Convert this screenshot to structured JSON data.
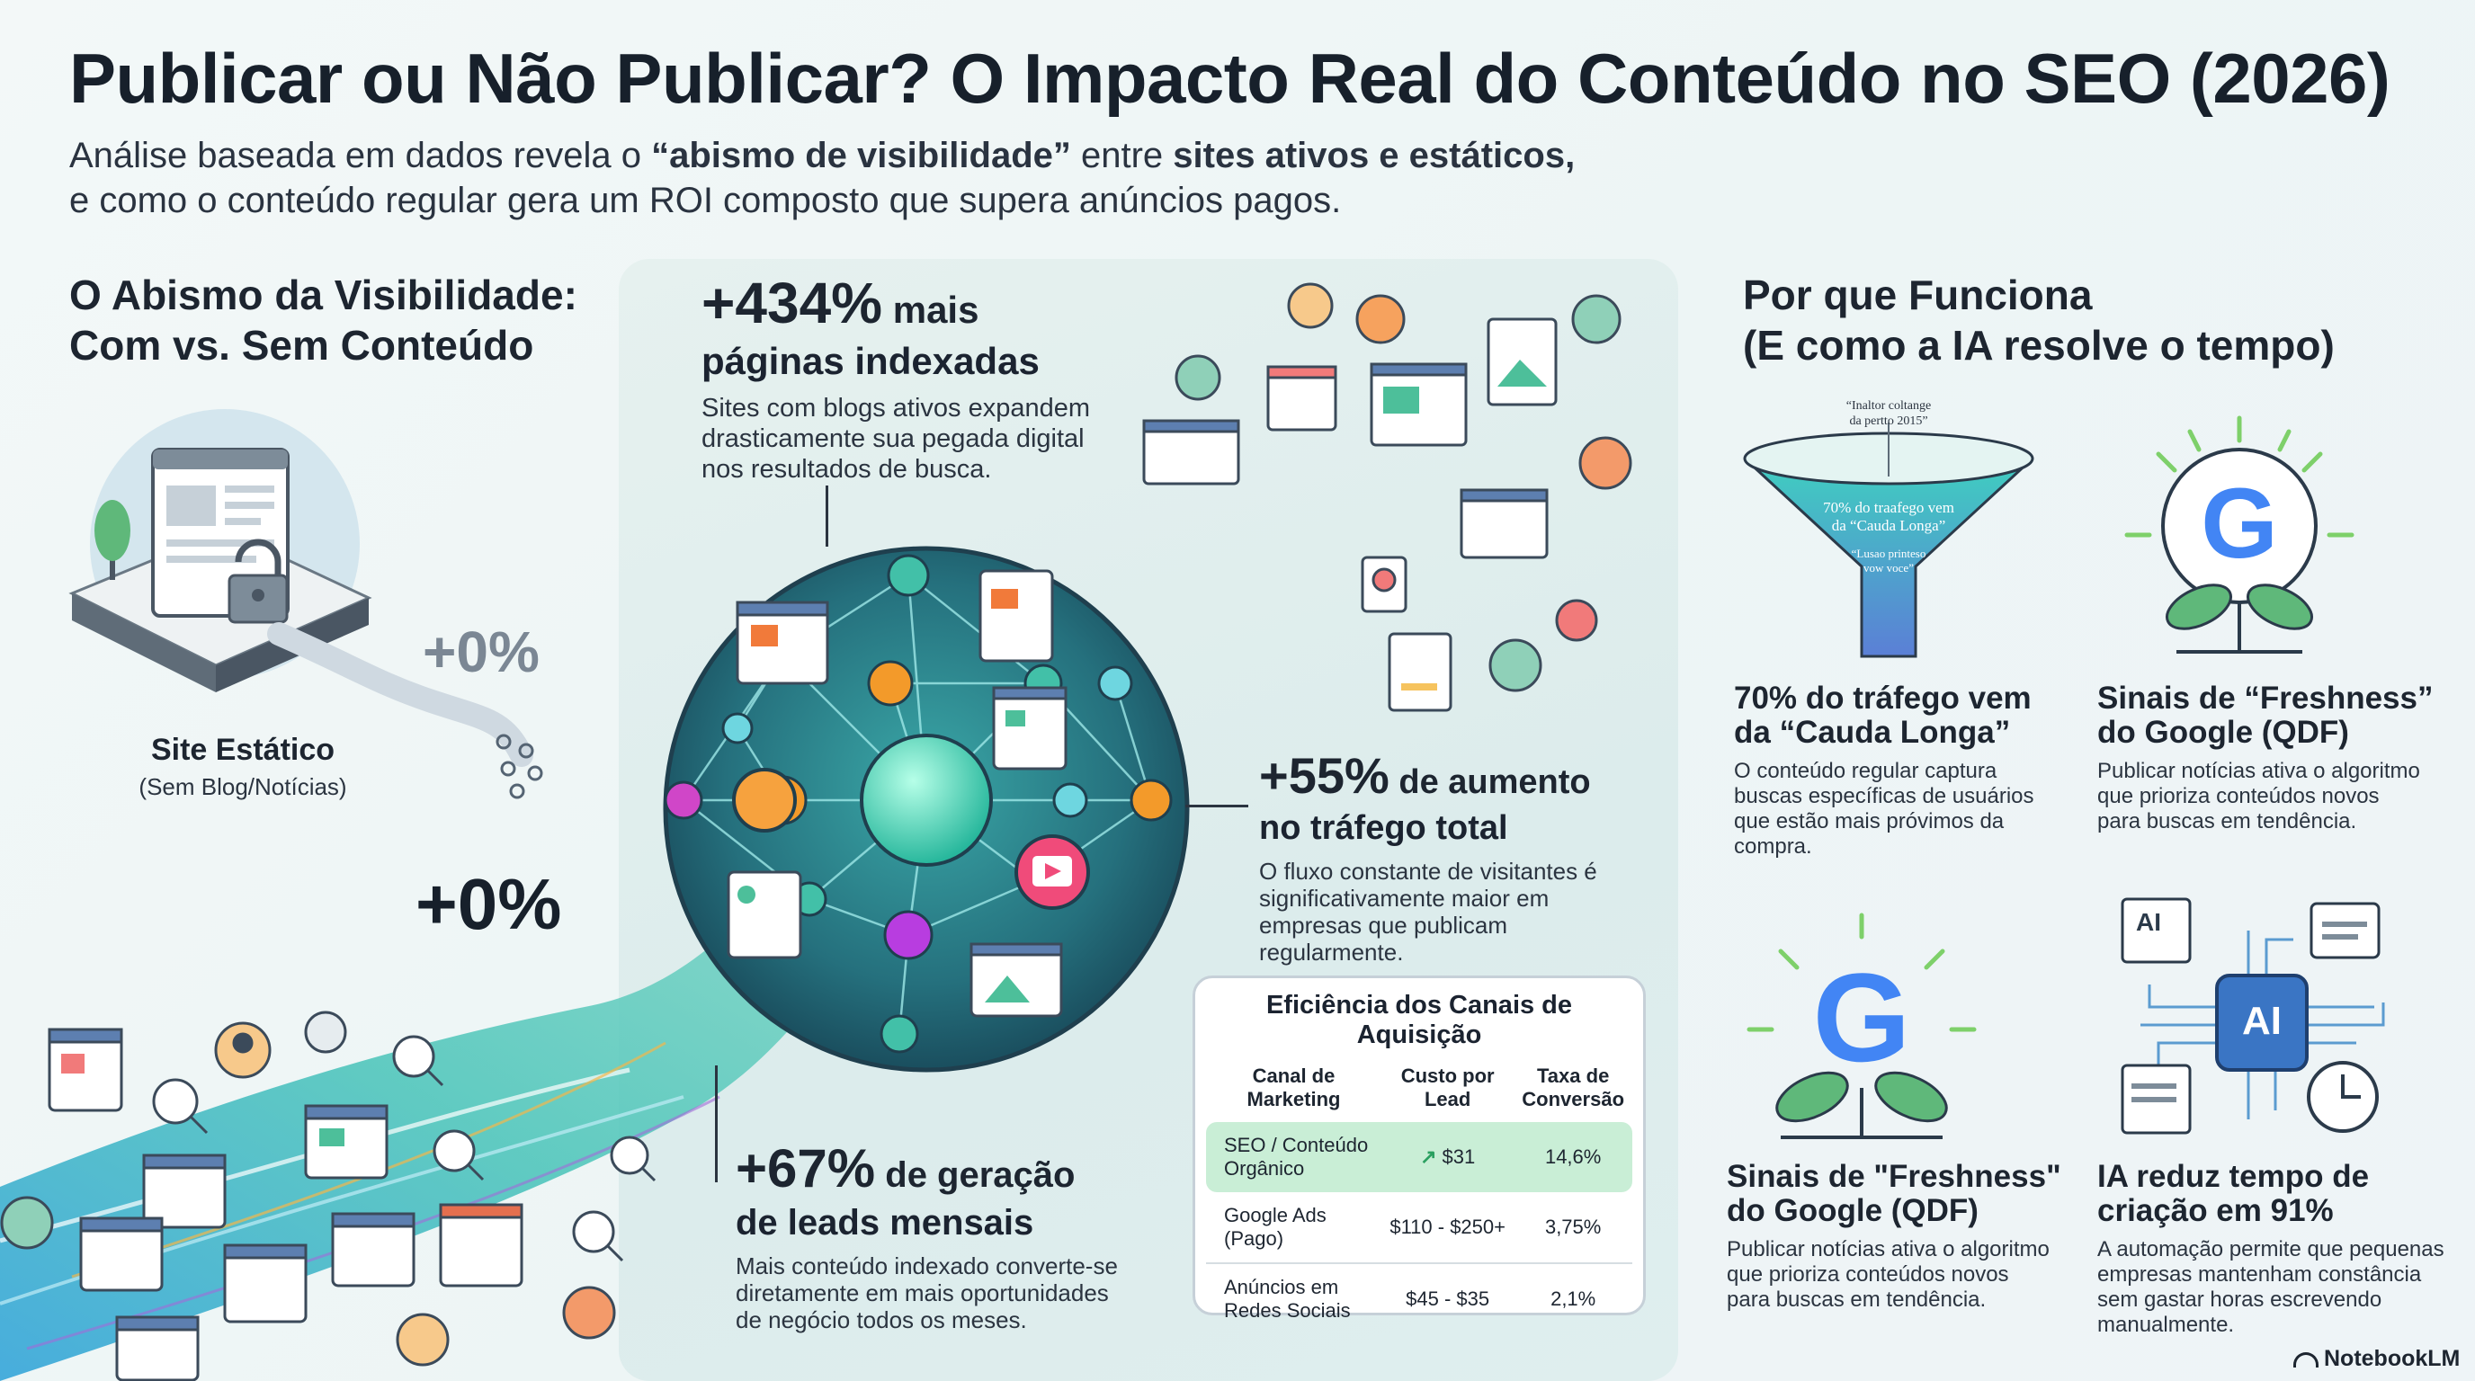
{
  "header": {
    "title": "Publicar ou Não Publicar? O Impacto Real do Conteúdo no SEO (2026)",
    "subtitle_line1_a": "Análise baseada em dados revela o ",
    "subtitle_line1_b": "“abismo de visibilidade”",
    "subtitle_line1_c": " entre ",
    "subtitle_line1_d": "sites ativos e estáticos,",
    "subtitle_line2": "e como o conteúdo regular gera um ROI composto que supera anúncios pagos."
  },
  "left": {
    "heading_line1": "O Abismo da Visibilidade:",
    "heading_line2": "Com vs. Sem Conteúdo",
    "static_percent": "+0%",
    "static_label": "Site Estático",
    "static_sub": "(Sem Blog/Notícias)",
    "big_percent": "+0%"
  },
  "center": {
    "stat1_num": "+434%",
    "stat1_unit": " mais",
    "stat1_line2": "páginas indexadas",
    "stat1_desc_1": "Sites com blogs ativos expandem",
    "stat1_desc_2": "drasticamente sua pegada digital",
    "stat1_desc_3": "nos resultados de busca.",
    "stat2_num": "+55%",
    "stat2_unit": " de aumento",
    "stat2_line2": "no tráfego total",
    "stat2_desc_1": "O fluxo constante de visitantes é",
    "stat2_desc_2": "significativamente maior em",
    "stat2_desc_3": "empresas que publicam",
    "stat2_desc_4": "regularmente.",
    "stat3_num": "+67%",
    "stat3_unit": " de geração",
    "stat3_line2": "de leads mensais",
    "stat3_desc_1": "Mais conteúdo indexado converte-se",
    "stat3_desc_2": "diretamente em mais oportunidades",
    "stat3_desc_3": "de negócio todos os meses."
  },
  "table": {
    "title": "Eficiência dos Canais de Aquisição",
    "head_channel_1": "Canal de",
    "head_channel_2": "Marketing",
    "head_cost_1": "Custo por",
    "head_cost_2": "Lead",
    "head_rate_1": "Taxa de",
    "head_rate_2": "Conversão",
    "rows": [
      {
        "channel_1": "SEO / Conteúdo",
        "channel_2": "Orgânico",
        "cost": "$31",
        "rate": "14,6%"
      },
      {
        "channel_1": "Google Ads",
        "channel_2": "(Pago)",
        "cost": "$110 - $250+",
        "rate": "3,75%"
      },
      {
        "channel_1": "Anúncios em",
        "channel_2": "Redes Sociais",
        "cost": "$45 - $35",
        "rate": "2,1%"
      }
    ],
    "highlight_color": "#c9eed6"
  },
  "right": {
    "heading_line1": "Por que Funciona",
    "heading_line2": "(E como a IA resolve o tempo)",
    "funnel_top_1": "“Inaltor coltange",
    "funnel_top_2": "da pertto 2015”",
    "funnel_text_1": "70% do traafego vem",
    "funnel_text_2": "da “Cauda Longa”",
    "funnel_text_3": "“Lusao printeso",
    "funnel_text_4": "vow voce”",
    "card1_title_1": "70% do tráfego vem",
    "card1_title_2": "da “Cauda Longa”",
    "card1_desc_1": "O conteúdo regular captura",
    "card1_desc_2": "buscas específicas de usuários",
    "card1_desc_3": "que estão mais próvimos da",
    "card1_desc_4": "compra.",
    "card2_title_1": "Sinais de “Freshness”",
    "card2_title_2": "do Google (QDF)",
    "card2_desc_1": "Publicar notícias ativa o algoritmo",
    "card2_desc_2": "que prioriza conteúdos novos",
    "card2_desc_3": "para buscas em tendência.",
    "card3_title_1": "Sinais de \"Freshness\"",
    "card3_title_2": "do Google (QDF)",
    "card3_desc_1": "Publicar notícias ativa o algoritmo",
    "card3_desc_2": "que prioriza conteúdos novos",
    "card3_desc_3": "para buscas em tendência.",
    "card4_title_1": "IA reduz tempo de",
    "card4_title_2": "criação em 91%",
    "card4_desc_1": "A automação permite que pequenas",
    "card4_desc_2": "empresas mantenham constância",
    "card4_desc_3": "sem gastar horas escrevendo",
    "card4_desc_4": "manualmente.",
    "ai_label": "AI",
    "ai_chip_label": "AI",
    "google_letter": "G"
  },
  "brand": {
    "name": "NotebookLM"
  },
  "colors": {
    "accent_teal": "#2bb3a3",
    "accent_orange": "#f39a2a",
    "accent_purple": "#b83de0",
    "google_blue": "#4285f4",
    "google_red": "#ea4335",
    "google_yellow": "#fbbc05",
    "google_green": "#34a853"
  }
}
